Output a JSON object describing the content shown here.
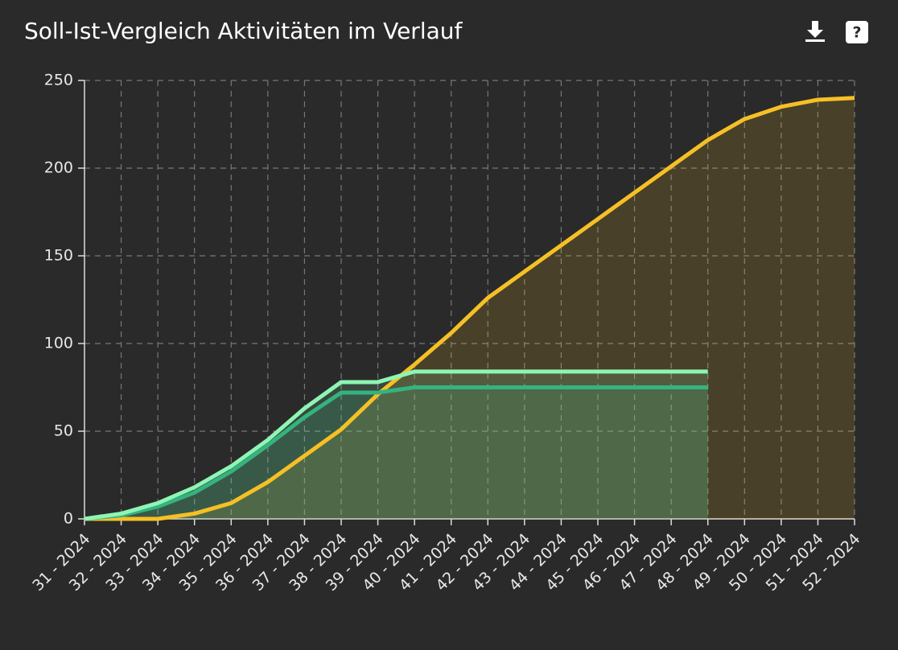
{
  "chart_data": {
    "type": "line",
    "title": "Soll-Ist-Vergleich Aktivitäten im Verlauf",
    "categories": [
      "31 - 2024",
      "32 - 2024",
      "33 - 2024",
      "34 - 2024",
      "35 - 2024",
      "36 - 2024",
      "37 - 2024",
      "38 - 2024",
      "39 - 2024",
      "40 - 2024",
      "41 - 2024",
      "42 - 2024",
      "43 - 2024",
      "44 - 2024",
      "45 - 2024",
      "46 - 2024",
      "47 - 2024",
      "48 - 2024",
      "49 - 2024",
      "50 - 2024",
      "51 - 2024",
      "52 - 2024"
    ],
    "series": [
      {
        "color": "#f6c025",
        "values": [
          0,
          0,
          0,
          3,
          9,
          21,
          36,
          51,
          71,
          88,
          106,
          126,
          141,
          156,
          171,
          186,
          201,
          216,
          228,
          235,
          239,
          240
        ]
      },
      {
        "color": "#35b37f",
        "values": [
          0,
          2,
          7,
          15,
          27,
          42,
          58,
          72,
          72,
          75,
          75,
          75,
          75,
          75,
          75,
          75,
          75,
          75,
          null,
          null,
          null,
          null
        ]
      },
      {
        "color": "#8ef5b4",
        "values": [
          0,
          3,
          9,
          18,
          30,
          45,
          63,
          78,
          78,
          84,
          84,
          84,
          84,
          84,
          84,
          84,
          84,
          84,
          null,
          null,
          null,
          null
        ]
      }
    ],
    "ylim": [
      0,
      250
    ],
    "yticks": [
      0,
      50,
      100,
      150,
      200,
      250
    ],
    "grid": true,
    "area": true
  }
}
